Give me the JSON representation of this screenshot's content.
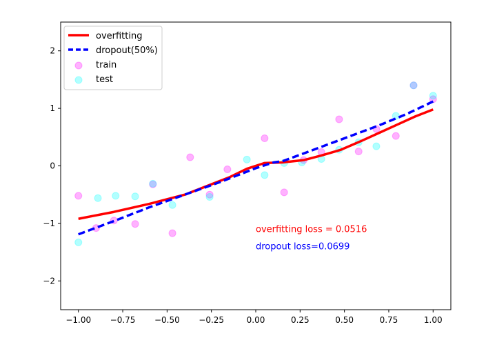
{
  "chart_data": {
    "type": "scatter",
    "title": "",
    "xlabel": "",
    "ylabel": "",
    "xlim": [
      -1.1,
      1.1
    ],
    "ylim": [
      -2.5,
      2.5
    ],
    "xticks": [
      -1.0,
      -0.75,
      -0.5,
      -0.25,
      0.0,
      0.25,
      0.5,
      0.75,
      1.0
    ],
    "xtick_labels": [
      "−1.00",
      "−0.75",
      "−0.50",
      "−0.25",
      "0.00",
      "0.25",
      "0.50",
      "0.75",
      "1.00"
    ],
    "yticks": [
      -2,
      -1,
      0,
      1,
      2
    ],
    "ytick_labels": [
      "−2",
      "−1",
      "0",
      "1",
      "2"
    ],
    "grid": false,
    "legend_position": "top-left",
    "series": [
      {
        "name": "overfitting",
        "kind": "line",
        "style": "solid",
        "color": "#ff0000",
        "x": [
          -1.0,
          -0.8,
          -0.6,
          -0.4,
          -0.25,
          -0.15,
          -0.05,
          0.05,
          0.15,
          0.27,
          0.37,
          0.48,
          0.6,
          0.7,
          0.8,
          0.9,
          1.0
        ],
        "y": [
          -0.92,
          -0.8,
          -0.66,
          -0.5,
          -0.32,
          -0.2,
          -0.05,
          0.05,
          0.06,
          0.1,
          0.18,
          0.28,
          0.44,
          0.58,
          0.72,
          0.86,
          0.98
        ]
      },
      {
        "name": "dropout(50%)",
        "kind": "line",
        "style": "dashed",
        "color": "#0000ff",
        "x": [
          -1.0,
          -0.8,
          -0.6,
          -0.4,
          -0.2,
          0.0,
          0.1,
          0.15,
          0.3,
          0.5,
          0.7,
          0.85,
          1.0
        ],
        "y": [
          -1.19,
          -0.96,
          -0.72,
          -0.5,
          -0.28,
          -0.04,
          0.06,
          0.08,
          0.25,
          0.48,
          0.71,
          0.9,
          1.12
        ]
      },
      {
        "name": "train",
        "kind": "scatter",
        "color": "#ff00ff",
        "alpha": 0.3,
        "x": [
          -1.0,
          -0.9,
          -0.8,
          -0.68,
          -0.58,
          -0.47,
          -0.37,
          -0.26,
          -0.16,
          0.05,
          0.16,
          0.27,
          0.37,
          0.47,
          0.58,
          0.68,
          0.79,
          0.89,
          1.0
        ],
        "y": [
          -0.52,
          -1.08,
          -0.95,
          -1.01,
          -0.32,
          -1.17,
          0.15,
          -0.5,
          -0.06,
          0.48,
          -0.46,
          0.1,
          0.24,
          0.81,
          0.25,
          0.64,
          0.52,
          1.4,
          1.16
        ]
      },
      {
        "name": "test",
        "kind": "scatter",
        "color": "#00ffff",
        "alpha": 0.3,
        "x": [
          -1.0,
          -0.89,
          -0.79,
          -0.68,
          -0.58,
          -0.47,
          -0.26,
          -0.05,
          0.05,
          0.16,
          0.26,
          0.37,
          0.47,
          0.58,
          0.68,
          0.79,
          0.89,
          1.0
        ],
        "y": [
          -1.33,
          -0.56,
          -0.52,
          -0.53,
          -0.31,
          -0.68,
          -0.54,
          0.11,
          -0.16,
          0.05,
          0.06,
          0.12,
          0.28,
          0.41,
          0.34,
          0.87,
          1.4,
          1.22
        ]
      }
    ],
    "annotations": [
      {
        "text": "overfitting loss = 0.0516",
        "x": 0.0,
        "y": -1.15,
        "color": "#ff0000"
      },
      {
        "text": "dropout loss=0.0699",
        "x": 0.0,
        "y": -1.45,
        "color": "#0000ff"
      }
    ]
  }
}
